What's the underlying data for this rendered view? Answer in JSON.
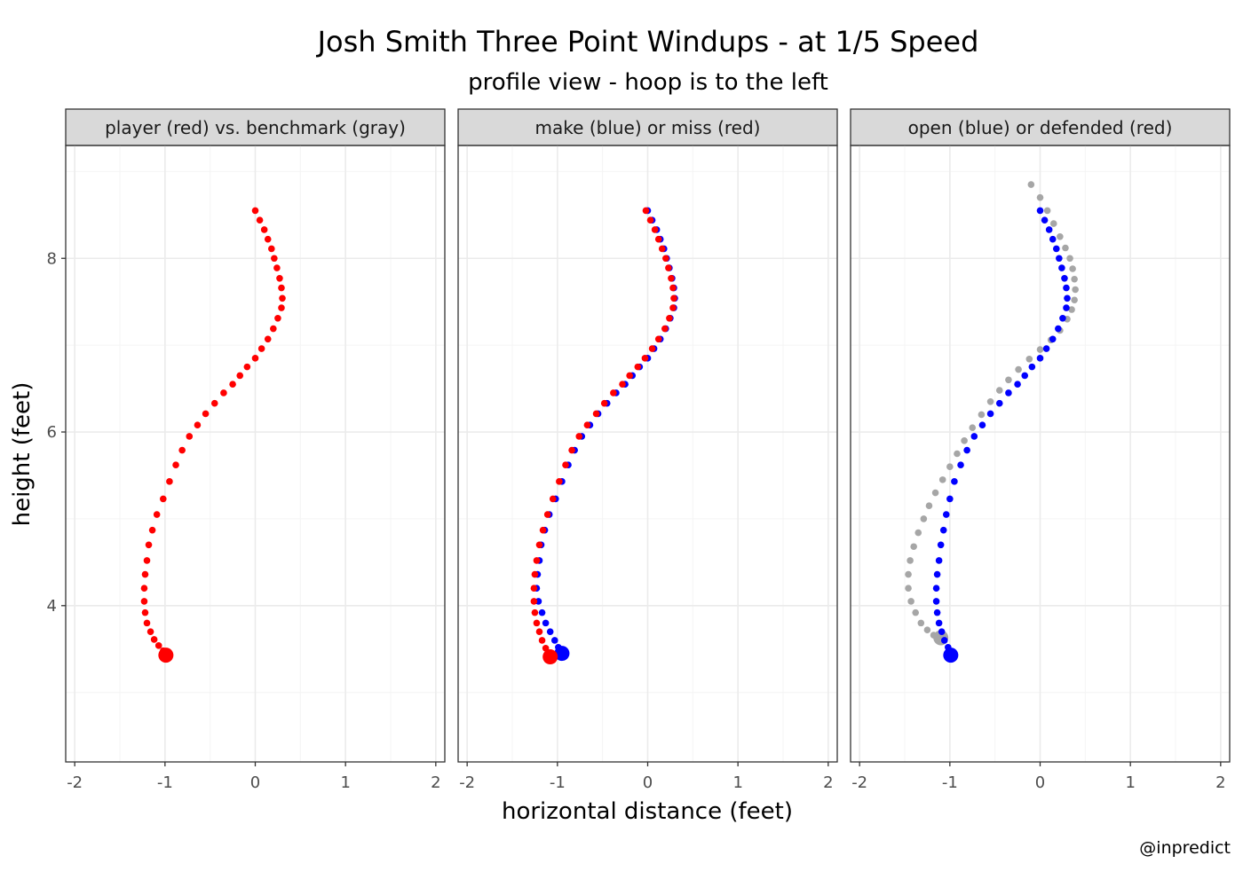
{
  "chart_data": {
    "type": "scatter",
    "title": "Josh Smith Three Point Windups - at 1/5 Speed",
    "subtitle": "profile view - hoop is to the left",
    "xlabel": "horizontal distance (feet)",
    "ylabel": "height (feet)",
    "caption": "@inpredict",
    "xlim": [
      -2.1,
      2.1
    ],
    "ylim": [
      2.2,
      9.3
    ],
    "x_ticks": [
      -2,
      -1,
      0,
      1,
      2
    ],
    "y_ticks": [
      4,
      6,
      8
    ],
    "grid": true,
    "colors": {
      "red": "#ff0000",
      "blue": "#0000ff",
      "gray": "#a6a6a6"
    },
    "panels": [
      {
        "strip": "player (red) vs. benchmark (gray)",
        "series": [
          {
            "color": "red",
            "start": [
              -0.99,
              3.43
            ],
            "points": [
              [
                0.0,
                8.55
              ],
              [
                0.05,
                8.44
              ],
              [
                0.1,
                8.33
              ],
              [
                0.14,
                8.22
              ],
              [
                0.18,
                8.11
              ],
              [
                0.21,
                8.0
              ],
              [
                0.24,
                7.89
              ],
              [
                0.27,
                7.77
              ],
              [
                0.29,
                7.66
              ],
              [
                0.3,
                7.54
              ],
              [
                0.29,
                7.43
              ],
              [
                0.25,
                7.31
              ],
              [
                0.2,
                7.19
              ],
              [
                0.14,
                7.07
              ],
              [
                0.07,
                6.96
              ],
              [
                0.0,
                6.85
              ],
              [
                -0.09,
                6.75
              ],
              [
                -0.17,
                6.65
              ],
              [
                -0.25,
                6.55
              ],
              [
                -0.35,
                6.45
              ],
              [
                -0.45,
                6.33
              ],
              [
                -0.55,
                6.21
              ],
              [
                -0.64,
                6.08
              ],
              [
                -0.73,
                5.95
              ],
              [
                -0.81,
                5.79
              ],
              [
                -0.88,
                5.62
              ],
              [
                -0.95,
                5.43
              ],
              [
                -1.02,
                5.23
              ],
              [
                -1.09,
                5.05
              ],
              [
                -1.14,
                4.87
              ],
              [
                -1.18,
                4.7
              ],
              [
                -1.2,
                4.52
              ],
              [
                -1.22,
                4.36
              ],
              [
                -1.23,
                4.2
              ],
              [
                -1.23,
                4.05
              ],
              [
                -1.22,
                3.92
              ],
              [
                -1.2,
                3.8
              ],
              [
                -1.16,
                3.7
              ],
              [
                -1.12,
                3.61
              ],
              [
                -1.07,
                3.54
              ],
              [
                -1.02,
                3.48
              ]
            ]
          }
        ]
      },
      {
        "strip": "make (blue) or miss (red)",
        "series": [
          {
            "color": "blue",
            "start": [
              -0.95,
              3.45
            ],
            "points": [
              [
                0.0,
                8.55
              ],
              [
                0.05,
                8.44
              ],
              [
                0.1,
                8.33
              ],
              [
                0.14,
                8.22
              ],
              [
                0.18,
                8.11
              ],
              [
                0.21,
                8.0
              ],
              [
                0.24,
                7.89
              ],
              [
                0.27,
                7.77
              ],
              [
                0.29,
                7.66
              ],
              [
                0.3,
                7.54
              ],
              [
                0.29,
                7.43
              ],
              [
                0.25,
                7.31
              ],
              [
                0.2,
                7.19
              ],
              [
                0.14,
                7.07
              ],
              [
                0.07,
                6.96
              ],
              [
                0.0,
                6.85
              ],
              [
                -0.09,
                6.75
              ],
              [
                -0.17,
                6.65
              ],
              [
                -0.25,
                6.55
              ],
              [
                -0.35,
                6.45
              ],
              [
                -0.45,
                6.33
              ],
              [
                -0.55,
                6.21
              ],
              [
                -0.64,
                6.08
              ],
              [
                -0.73,
                5.95
              ],
              [
                -0.81,
                5.79
              ],
              [
                -0.88,
                5.62
              ],
              [
                -0.95,
                5.43
              ],
              [
                -1.02,
                5.23
              ],
              [
                -1.09,
                5.05
              ],
              [
                -1.14,
                4.87
              ],
              [
                -1.18,
                4.7
              ],
              [
                -1.2,
                4.52
              ],
              [
                -1.22,
                4.36
              ],
              [
                -1.23,
                4.2
              ],
              [
                -1.21,
                4.05
              ],
              [
                -1.17,
                3.92
              ],
              [
                -1.13,
                3.8
              ],
              [
                -1.08,
                3.7
              ],
              [
                -1.03,
                3.6
              ],
              [
                -0.99,
                3.52
              ]
            ]
          },
          {
            "color": "red",
            "start": [
              -1.08,
              3.41
            ],
            "points": [
              [
                -0.02,
                8.55
              ],
              [
                0.03,
                8.44
              ],
              [
                0.08,
                8.33
              ],
              [
                0.12,
                8.22
              ],
              [
                0.16,
                8.11
              ],
              [
                0.2,
                8.0
              ],
              [
                0.23,
                7.89
              ],
              [
                0.26,
                7.77
              ],
              [
                0.28,
                7.66
              ],
              [
                0.29,
                7.54
              ],
              [
                0.28,
                7.43
              ],
              [
                0.24,
                7.31
              ],
              [
                0.19,
                7.19
              ],
              [
                0.12,
                7.07
              ],
              [
                0.05,
                6.96
              ],
              [
                -0.03,
                6.85
              ],
              [
                -0.11,
                6.75
              ],
              [
                -0.2,
                6.65
              ],
              [
                -0.28,
                6.55
              ],
              [
                -0.38,
                6.45
              ],
              [
                -0.48,
                6.33
              ],
              [
                -0.57,
                6.21
              ],
              [
                -0.67,
                6.08
              ],
              [
                -0.76,
                5.95
              ],
              [
                -0.84,
                5.79
              ],
              [
                -0.91,
                5.62
              ],
              [
                -0.98,
                5.43
              ],
              [
                -1.05,
                5.23
              ],
              [
                -1.11,
                5.05
              ],
              [
                -1.16,
                4.87
              ],
              [
                -1.2,
                4.7
              ],
              [
                -1.23,
                4.52
              ],
              [
                -1.25,
                4.36
              ],
              [
                -1.26,
                4.2
              ],
              [
                -1.26,
                4.05
              ],
              [
                -1.25,
                3.92
              ],
              [
                -1.23,
                3.8
              ],
              [
                -1.2,
                3.7
              ],
              [
                -1.17,
                3.6
              ],
              [
                -1.13,
                3.51
              ]
            ]
          }
        ]
      },
      {
        "strip": "open (blue) or defended (red)",
        "series": [
          {
            "color": "gray",
            "start": [
              -1.1,
              3.63
            ],
            "points": [
              [
                -0.1,
                8.85
              ],
              [
                0.0,
                8.7
              ],
              [
                0.08,
                8.55
              ],
              [
                0.15,
                8.4
              ],
              [
                0.22,
                8.25
              ],
              [
                0.28,
                8.12
              ],
              [
                0.33,
                8.0
              ],
              [
                0.36,
                7.88
              ],
              [
                0.38,
                7.76
              ],
              [
                0.39,
                7.64
              ],
              [
                0.38,
                7.52
              ],
              [
                0.35,
                7.41
              ],
              [
                0.3,
                7.3
              ],
              [
                0.22,
                7.17
              ],
              [
                0.12,
                7.06
              ],
              [
                0.0,
                6.95
              ],
              [
                -0.12,
                6.84
              ],
              [
                -0.24,
                6.72
              ],
              [
                -0.35,
                6.6
              ],
              [
                -0.45,
                6.48
              ],
              [
                -0.55,
                6.35
              ],
              [
                -0.65,
                6.2
              ],
              [
                -0.75,
                6.05
              ],
              [
                -0.84,
                5.9
              ],
              [
                -0.92,
                5.75
              ],
              [
                -1.0,
                5.6
              ],
              [
                -1.08,
                5.45
              ],
              [
                -1.16,
                5.3
              ],
              [
                -1.23,
                5.15
              ],
              [
                -1.29,
                5.0
              ],
              [
                -1.35,
                4.84
              ],
              [
                -1.4,
                4.68
              ],
              [
                -1.44,
                4.52
              ],
              [
                -1.46,
                4.36
              ],
              [
                -1.46,
                4.2
              ],
              [
                -1.43,
                4.05
              ],
              [
                -1.38,
                3.92
              ],
              [
                -1.32,
                3.8
              ],
              [
                -1.25,
                3.72
              ],
              [
                -1.18,
                3.66
              ]
            ]
          },
          {
            "color": "blue",
            "start": [
              -0.99,
              3.43
            ],
            "points": [
              [
                0.0,
                8.55
              ],
              [
                0.05,
                8.44
              ],
              [
                0.1,
                8.33
              ],
              [
                0.14,
                8.22
              ],
              [
                0.18,
                8.11
              ],
              [
                0.21,
                8.0
              ],
              [
                0.24,
                7.89
              ],
              [
                0.27,
                7.77
              ],
              [
                0.29,
                7.66
              ],
              [
                0.3,
                7.54
              ],
              [
                0.29,
                7.43
              ],
              [
                0.25,
                7.31
              ],
              [
                0.2,
                7.19
              ],
              [
                0.14,
                7.07
              ],
              [
                0.07,
                6.96
              ],
              [
                0.0,
                6.85
              ],
              [
                -0.09,
                6.75
              ],
              [
                -0.17,
                6.65
              ],
              [
                -0.25,
                6.55
              ],
              [
                -0.35,
                6.45
              ],
              [
                -0.45,
                6.33
              ],
              [
                -0.55,
                6.21
              ],
              [
                -0.64,
                6.08
              ],
              [
                -0.73,
                5.95
              ],
              [
                -0.81,
                5.79
              ],
              [
                -0.88,
                5.62
              ],
              [
                -0.95,
                5.43
              ],
              [
                -1.0,
                5.23
              ],
              [
                -1.04,
                5.05
              ],
              [
                -1.07,
                4.87
              ],
              [
                -1.1,
                4.7
              ],
              [
                -1.12,
                4.52
              ],
              [
                -1.14,
                4.36
              ],
              [
                -1.15,
                4.2
              ],
              [
                -1.15,
                4.05
              ],
              [
                -1.14,
                3.92
              ],
              [
                -1.12,
                3.8
              ],
              [
                -1.09,
                3.7
              ],
              [
                -1.06,
                3.6
              ],
              [
                -1.02,
                3.52
              ]
            ]
          }
        ]
      }
    ]
  }
}
